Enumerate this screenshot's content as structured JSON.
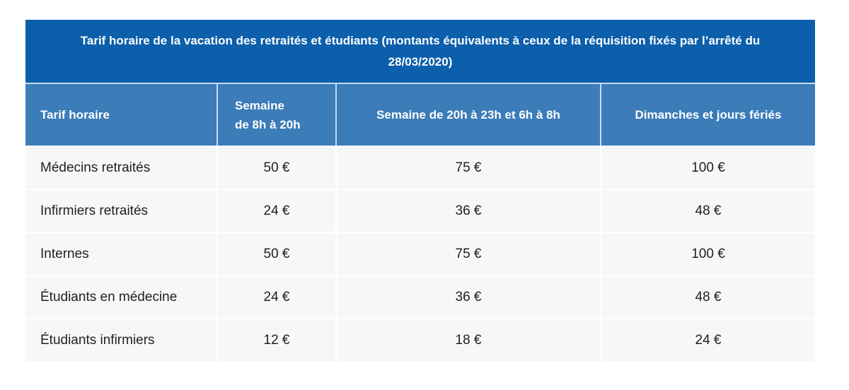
{
  "table": {
    "title": "Tarif horaire de la vacation des retraités et étudiants (montants équivalents à ceux de la réquisition fixés par l’arrêté du 28/03/2020)",
    "columns": [
      "Tarif horaire",
      "Semaine\nde 8h à 20h",
      "Semaine de 20h à 23h et 6h à 8h",
      "Dimanches et jours fériés"
    ],
    "rows": [
      {
        "label": "Médecins retraités",
        "values": [
          "50 €",
          "75 €",
          "100 €"
        ]
      },
      {
        "label": "Infirmiers retraités",
        "values": [
          "24 €",
          "36 €",
          "48 €"
        ]
      },
      {
        "label": "Internes",
        "values": [
          "50 €",
          "75 €",
          "100 €"
        ]
      },
      {
        "label": "Étudiants en médecine",
        "values": [
          "24 €",
          "36 €",
          "48 €"
        ]
      },
      {
        "label": "Étudiants infirmiers",
        "values": [
          "12 €",
          "18 €",
          "24 €"
        ]
      }
    ]
  },
  "colors": {
    "banner_bg": "#0c5fab",
    "header_bg": "#3b7cb9",
    "header_sep": "#c9dcec",
    "row_bg": "#f7f7f7",
    "row_sep": "#ffffff",
    "body_text": "#212121",
    "header_text": "#ffffff",
    "page_bg": "#ffffff"
  }
}
